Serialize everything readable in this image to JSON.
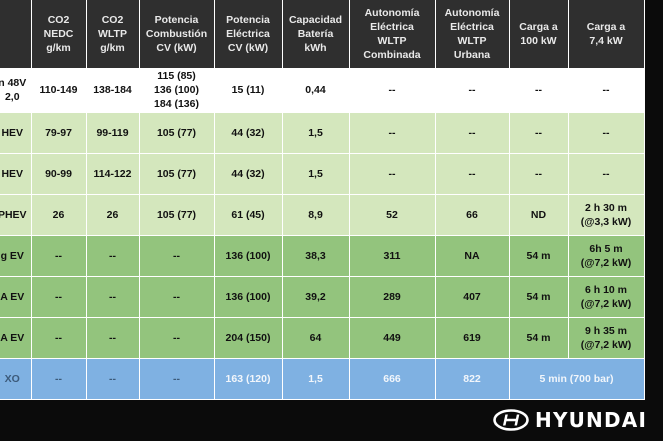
{
  "headers": [
    "",
    "CO2\nNEDC\ng/km",
    "CO2\nWLTP\ng/km",
    "Potencia\nCombustión\nCV (kW)",
    "Potencia\nEléctrica\nCV (kW)",
    "Capacidad\nBatería\nkWh",
    "Autonomía\nEléctrica\nWLTP\nCombinada",
    "Autonomía\nEléctrica\nWLTP\nUrbana",
    "Carga a\n100 kW",
    "Carga a\n7,4 kW"
  ],
  "rows": [
    {
      "model": "n 48V\n2,0",
      "nedc": "110-149",
      "wltp": "138-184",
      "combustion": "115 (85)\n136 (100)\n184 (136)",
      "electric": "15 (11)",
      "battery": "0,44",
      "range_comb": "--",
      "range_urban": "--",
      "charge100": "--",
      "charge74": "--"
    },
    {
      "model": "HEV",
      "nedc": "79-97",
      "wltp": "99-119",
      "combustion": "105 (77)",
      "electric": "44 (32)",
      "battery": "1,5",
      "range_comb": "--",
      "range_urban": "--",
      "charge100": "--",
      "charge74": "--"
    },
    {
      "model": "HEV",
      "nedc": "90-99",
      "wltp": "114-122",
      "combustion": "105 (77)",
      "electric": "44 (32)",
      "battery": "1,5",
      "range_comb": "--",
      "range_urban": "--",
      "charge100": "--",
      "charge74": "--"
    },
    {
      "model": "PHEV",
      "nedc": "26",
      "wltp": "26",
      "combustion": "105 (77)",
      "electric": "61 (45)",
      "battery": "8,9",
      "range_comb": "52",
      "range_urban": "66",
      "charge100": "ND",
      "charge74": "2 h 30 m\n(@3,3 kW)"
    },
    {
      "model": "g EV",
      "nedc": "--",
      "wltp": "--",
      "combustion": "--",
      "electric": "136 (100)",
      "battery": "38,3",
      "range_comb": "311",
      "range_urban": "NA",
      "charge100": "54 m",
      "charge74": "6h 5 m\n(@7,2 kW)"
    },
    {
      "model": "A EV",
      "nedc": "--",
      "wltp": "--",
      "combustion": "--",
      "electric": "136 (100)",
      "battery": "39,2",
      "range_comb": "289",
      "range_urban": "407",
      "charge100": "54 m",
      "charge74": "6 h 10 m\n(@7,2 kW)"
    },
    {
      "model": "A EV",
      "nedc": "--",
      "wltp": "--",
      "combustion": "--",
      "electric": "204 (150)",
      "battery": "64",
      "range_comb": "449",
      "range_urban": "619",
      "charge100": "54 m",
      "charge74": "9 h 35 m\n(@7,2 kW)"
    },
    {
      "model": "XO",
      "nedc": "--",
      "wltp": "--",
      "combustion": "--",
      "electric": "163 (120)",
      "battery": "1,5",
      "range_comb": "666",
      "range_urban": "822",
      "charge_combined": "5 min (700 bar)"
    }
  ],
  "brand": {
    "name": "HYUNDAI",
    "logo_icon": "hyundai-logo-icon"
  },
  "colors": {
    "header": "#2f2f2f",
    "white_row": "#ffffff",
    "light_green": "#d4e7bd",
    "green": "#93c47d",
    "blue": "#7fb1e2",
    "background": "#0b0b0b"
  }
}
